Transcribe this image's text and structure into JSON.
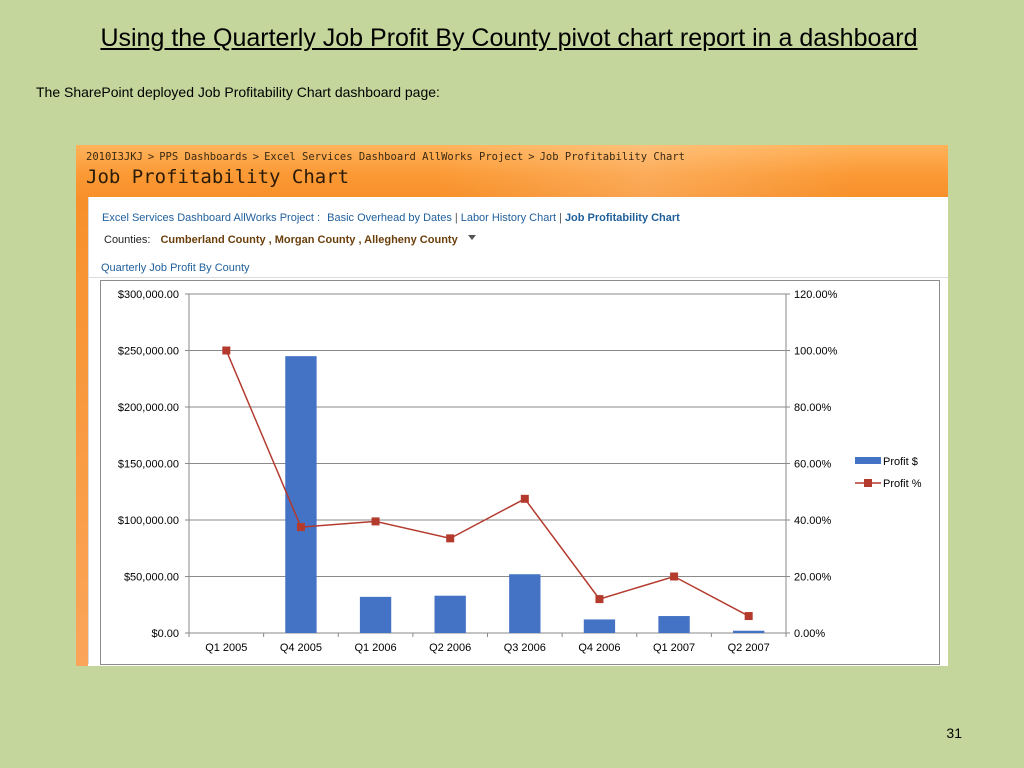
{
  "slide": {
    "title": "Using the Quarterly Job Profit By County pivot chart report in a dashboard",
    "caption": "The SharePoint deployed Job Profitability Chart dashboard page:",
    "page_number": "31"
  },
  "sharepoint": {
    "breadcrumb": [
      "2010I3JKJ",
      "PPS Dashboards",
      "Excel Services Dashboard AllWorks Project",
      "Job Profitability Chart"
    ],
    "page_heading": "Job Profitability Chart",
    "nav": {
      "project": "Excel Services Dashboard AllWorks Project :",
      "link1": "Basic Overhead by Dates",
      "link2": "Labor History Chart",
      "current": "Job Profitability Chart"
    },
    "filter": {
      "label": "Counties:",
      "value": "Cumberland County , Morgan County , Allegheny County"
    },
    "report_title": "Quarterly Job Profit By County"
  },
  "colors": {
    "bar": "#4472c4",
    "line": "#b43a2e",
    "header_orange": "#f7902a",
    "background": "#c4d69c"
  },
  "chart_data": {
    "type": "bar",
    "categories": [
      "Q1 2005",
      "Q4 2005",
      "Q1 2006",
      "Q2 2006",
      "Q3 2006",
      "Q4 2006",
      "Q1 2007",
      "Q2 2007"
    ],
    "series": [
      {
        "name": "Profit $",
        "type": "bar",
        "axis": "left",
        "values": [
          0,
          245000,
          32000,
          33000,
          52000,
          12000,
          15000,
          2000
        ]
      },
      {
        "name": "Profit %",
        "type": "line",
        "axis": "right",
        "values": [
          100,
          37.5,
          39.5,
          33.5,
          47.5,
          12,
          20,
          6
        ]
      }
    ],
    "y_left": {
      "ticks": [
        "$0.00",
        "$50,000.00",
        "$100,000.00",
        "$150,000.00",
        "$200,000.00",
        "$250,000.00",
        "$300,000.00"
      ],
      "ylim": [
        0,
        300000
      ]
    },
    "y_right": {
      "ticks": [
        "0.00%",
        "20.00%",
        "40.00%",
        "60.00%",
        "80.00%",
        "100.00%",
        "120.00%"
      ],
      "ylim": [
        0,
        120
      ]
    },
    "grid": true,
    "legend": "right"
  }
}
